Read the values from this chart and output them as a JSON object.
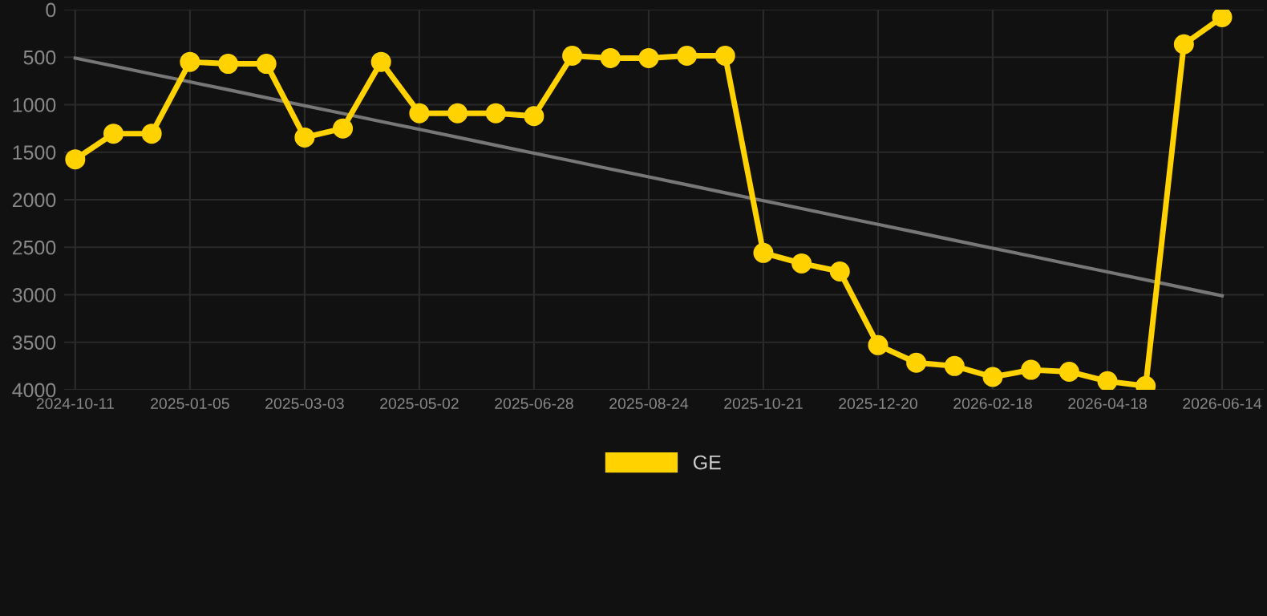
{
  "chart_data": {
    "type": "line",
    "categories": [
      "2024-10-11",
      null,
      null,
      "2025-01-05",
      null,
      null,
      "2025-03-03",
      null,
      null,
      "2025-05-02",
      null,
      null,
      "2025-06-28",
      null,
      null,
      "2025-08-24",
      null,
      null,
      "2025-10-21",
      null,
      null,
      "2025-12-20",
      null,
      null,
      "2026-02-18",
      null,
      null,
      "2026-04-18",
      null,
      null,
      "2026-06-14"
    ],
    "series": [
      {
        "name": "GE",
        "color": "#ffd200",
        "marker": "circle",
        "values": [
          1575,
          1305,
          1305,
          550,
          570,
          570,
          1345,
          1250,
          550,
          1090,
          1090,
          1090,
          1120,
          485,
          510,
          510,
          485,
          485,
          2560,
          2670,
          2755,
          3530,
          3715,
          3750,
          3865,
          3790,
          3810,
          3910,
          3960,
          365,
          80
        ]
      },
      {
        "color": "#777777",
        "marker": "none",
        "values": [
          510,
          593,
          677,
          760,
          843,
          927,
          1010,
          1093,
          1177,
          1260,
          1343,
          1427,
          1510,
          1593,
          1677,
          1760,
          1843,
          1927,
          2010,
          2093,
          2177,
          2260,
          2343,
          2427,
          2510,
          2593,
          2677,
          2760,
          2843,
          2927,
          3010
        ]
      }
    ],
    "ylim": [
      4000,
      0
    ],
    "yticks": [
      0,
      500,
      1000,
      1500,
      2000,
      2500,
      3000,
      3500,
      4000
    ],
    "grid": true,
    "legend": "bottom",
    "line_style": "solid"
  }
}
